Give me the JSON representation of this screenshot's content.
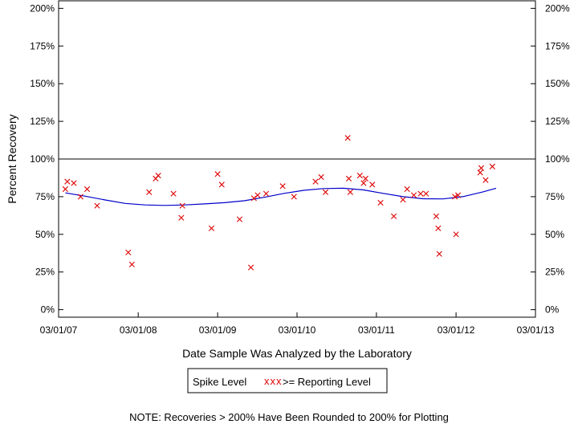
{
  "chart_data": {
    "type": "scatter",
    "title": "",
    "xlabel": "Date Sample Was Analyzed by the Laboratory",
    "ylabel": "Percent Recovery",
    "xlim": [
      "2007-03-01",
      "2013-03-01"
    ],
    "ylim": [
      -5,
      205
    ],
    "x_ticks": [
      "03/01/07",
      "03/01/08",
      "03/01/09",
      "03/01/10",
      "03/01/11",
      "03/01/12",
      "03/01/13"
    ],
    "y_ticks": [
      "0%",
      "25%",
      "50%",
      "75%",
      "100%",
      "125%",
      "150%",
      "175%",
      "200%"
    ],
    "y_tick_values": [
      0,
      25,
      50,
      75,
      100,
      125,
      150,
      175,
      200
    ],
    "reference_line": 100,
    "legend": {
      "placement": "bottom-center",
      "title": "Spike Level",
      "marker_label": "xxx",
      "entry": ">= Reporting Level"
    },
    "note": "NOTE: Recoveries > 200% Have Been Rounded to 200% for Plotting",
    "series": [
      {
        "name": ">= Reporting Level",
        "marker": "x",
        "color": "#dd0000",
        "points": [
          {
            "x": "2007-04-01",
            "y": 80
          },
          {
            "x": "2007-04-10",
            "y": 85
          },
          {
            "x": "2007-05-10",
            "y": 84
          },
          {
            "x": "2007-06-10",
            "y": 75
          },
          {
            "x": "2007-07-10",
            "y": 80
          },
          {
            "x": "2007-08-25",
            "y": 69
          },
          {
            "x": "2008-01-15",
            "y": 38
          },
          {
            "x": "2008-02-01",
            "y": 30
          },
          {
            "x": "2008-04-20",
            "y": 78
          },
          {
            "x": "2008-05-20",
            "y": 87
          },
          {
            "x": "2008-06-01",
            "y": 89
          },
          {
            "x": "2008-08-10",
            "y": 77
          },
          {
            "x": "2008-09-15",
            "y": 61
          },
          {
            "x": "2008-09-20",
            "y": 69
          },
          {
            "x": "2009-02-01",
            "y": 54
          },
          {
            "x": "2009-03-01",
            "y": 90
          },
          {
            "x": "2009-03-20",
            "y": 83
          },
          {
            "x": "2009-06-10",
            "y": 60
          },
          {
            "x": "2009-08-01",
            "y": 28
          },
          {
            "x": "2009-08-15",
            "y": 74
          },
          {
            "x": "2009-09-01",
            "y": 76
          },
          {
            "x": "2009-10-10",
            "y": 77
          },
          {
            "x": "2009-12-25",
            "y": 82
          },
          {
            "x": "2010-02-15",
            "y": 75
          },
          {
            "x": "2010-05-25",
            "y": 85
          },
          {
            "x": "2010-06-20",
            "y": 88
          },
          {
            "x": "2010-07-10",
            "y": 78
          },
          {
            "x": "2010-10-20",
            "y": 114
          },
          {
            "x": "2010-10-25",
            "y": 87
          },
          {
            "x": "2010-11-01",
            "y": 78
          },
          {
            "x": "2010-12-15",
            "y": 89
          },
          {
            "x": "2011-01-01",
            "y": 84
          },
          {
            "x": "2011-01-10",
            "y": 87
          },
          {
            "x": "2011-02-10",
            "y": 83
          },
          {
            "x": "2011-03-20",
            "y": 71
          },
          {
            "x": "2011-05-20",
            "y": 62
          },
          {
            "x": "2011-07-01",
            "y": 73
          },
          {
            "x": "2011-07-20",
            "y": 80
          },
          {
            "x": "2011-08-20",
            "y": 76
          },
          {
            "x": "2011-09-20",
            "y": 77
          },
          {
            "x": "2011-10-15",
            "y": 77
          },
          {
            "x": "2011-12-01",
            "y": 62
          },
          {
            "x": "2011-12-10",
            "y": 54
          },
          {
            "x": "2011-12-15",
            "y": 37
          },
          {
            "x": "2012-02-25",
            "y": 75
          },
          {
            "x": "2012-03-01",
            "y": 50
          },
          {
            "x": "2012-03-10",
            "y": 76
          },
          {
            "x": "2012-06-20",
            "y": 91
          },
          {
            "x": "2012-06-25",
            "y": 94
          },
          {
            "x": "2012-07-15",
            "y": 86
          },
          {
            "x": "2012-08-15",
            "y": 95
          }
        ]
      },
      {
        "name": "trend",
        "type": "line",
        "color": "#0000cc",
        "points": [
          {
            "x": "2007-04-01",
            "y": 77.5
          },
          {
            "x": "2007-07-01",
            "y": 75.3
          },
          {
            "x": "2007-10-01",
            "y": 72.8
          },
          {
            "x": "2008-01-01",
            "y": 70.5
          },
          {
            "x": "2008-04-01",
            "y": 69.5
          },
          {
            "x": "2008-07-01",
            "y": 69.2
          },
          {
            "x": "2008-10-01",
            "y": 69.5
          },
          {
            "x": "2009-01-01",
            "y": 70.2
          },
          {
            "x": "2009-04-01",
            "y": 71
          },
          {
            "x": "2009-07-01",
            "y": 72.3
          },
          {
            "x": "2009-10-01",
            "y": 74.6
          },
          {
            "x": "2010-01-01",
            "y": 77.2
          },
          {
            "x": "2010-04-01",
            "y": 79.2
          },
          {
            "x": "2010-07-01",
            "y": 80.4
          },
          {
            "x": "2010-10-01",
            "y": 80.6
          },
          {
            "x": "2011-01-01",
            "y": 79.5
          },
          {
            "x": "2011-04-01",
            "y": 77.2
          },
          {
            "x": "2011-07-01",
            "y": 75
          },
          {
            "x": "2011-10-01",
            "y": 73.6
          },
          {
            "x": "2012-01-01",
            "y": 73.5
          },
          {
            "x": "2012-04-01",
            "y": 75
          },
          {
            "x": "2012-07-01",
            "y": 78.1
          },
          {
            "x": "2012-09-01",
            "y": 80.6
          }
        ]
      }
    ]
  }
}
